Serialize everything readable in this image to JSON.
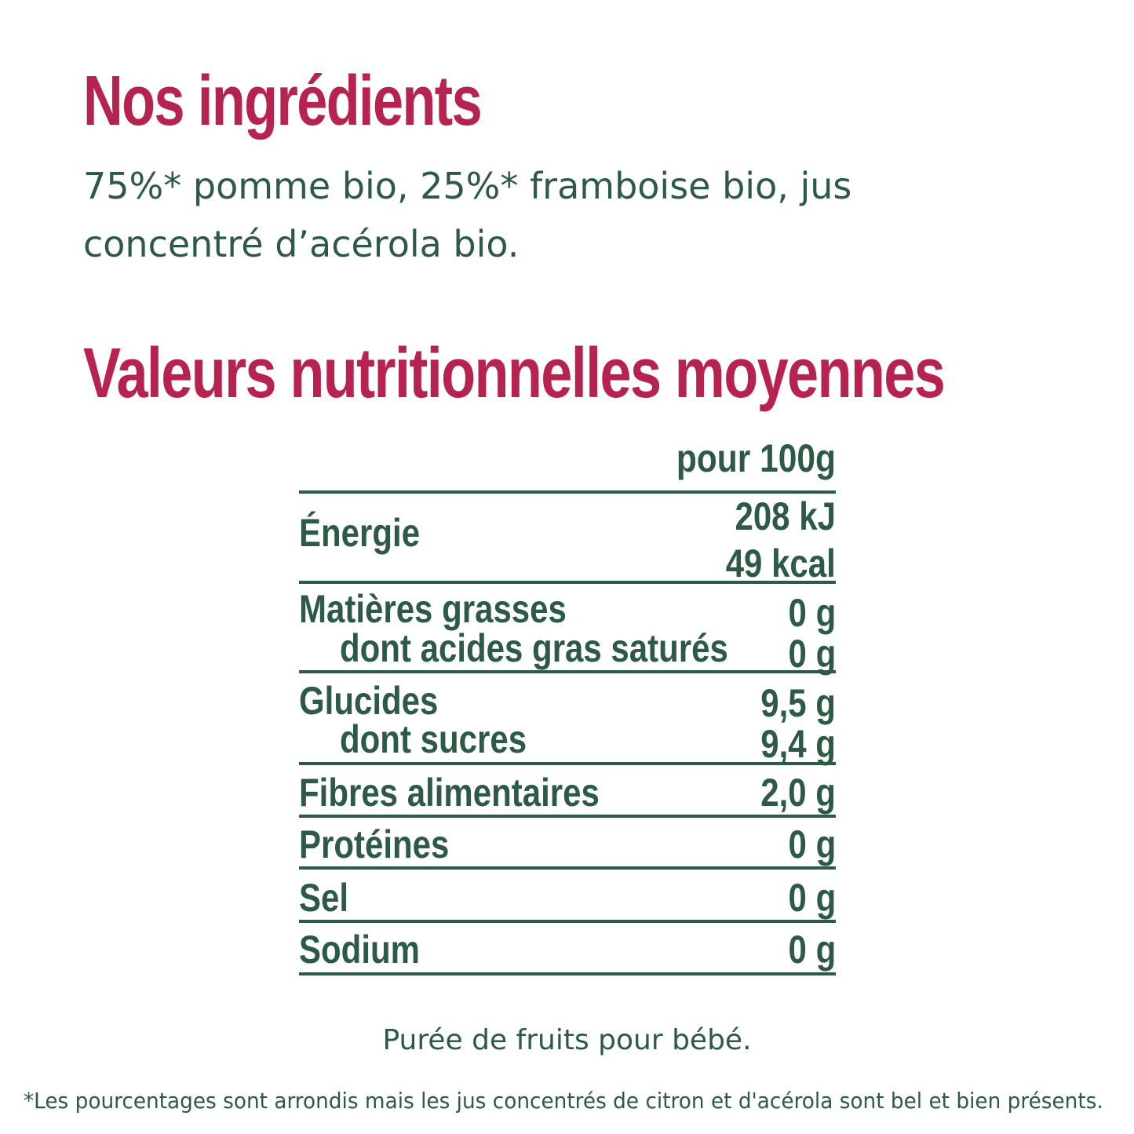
{
  "ingredients": {
    "title": "Nos ingrédients",
    "line1": "75%* pomme bio, 25%* framboise bio, jus",
    "line2": "concentré d’acérola bio."
  },
  "nutrition": {
    "title": "Valeurs nutritionnelles moyennes",
    "column_header": "pour 100g",
    "rows": [
      {
        "label": "Énergie",
        "value_kj": "208 kJ",
        "value_kcal": "49 kcal"
      },
      {
        "label": "Matières grasses",
        "value": "0 g",
        "sub_label": "dont acides gras saturés",
        "sub_value": "0 g"
      },
      {
        "label": "Glucides",
        "value": "9,5 g",
        "sub_label": "dont sucres",
        "sub_value": "9,4 g"
      },
      {
        "label": "Fibres alimentaires",
        "value": "2,0 g"
      },
      {
        "label": "Protéines",
        "value": "0 g"
      },
      {
        "label": "Sel",
        "value": "0 g"
      },
      {
        "label": "Sodium",
        "value": "0 g"
      }
    ]
  },
  "footer": {
    "product": "Purée de fruits pour bébé.",
    "note": "*Les pourcentages sont arrondis mais les jus concentrés de citron  et d'acérola sont bel et bien présents."
  },
  "colors": {
    "title": "#b5234e",
    "text": "#2d5a45",
    "background": "#ffffff"
  }
}
